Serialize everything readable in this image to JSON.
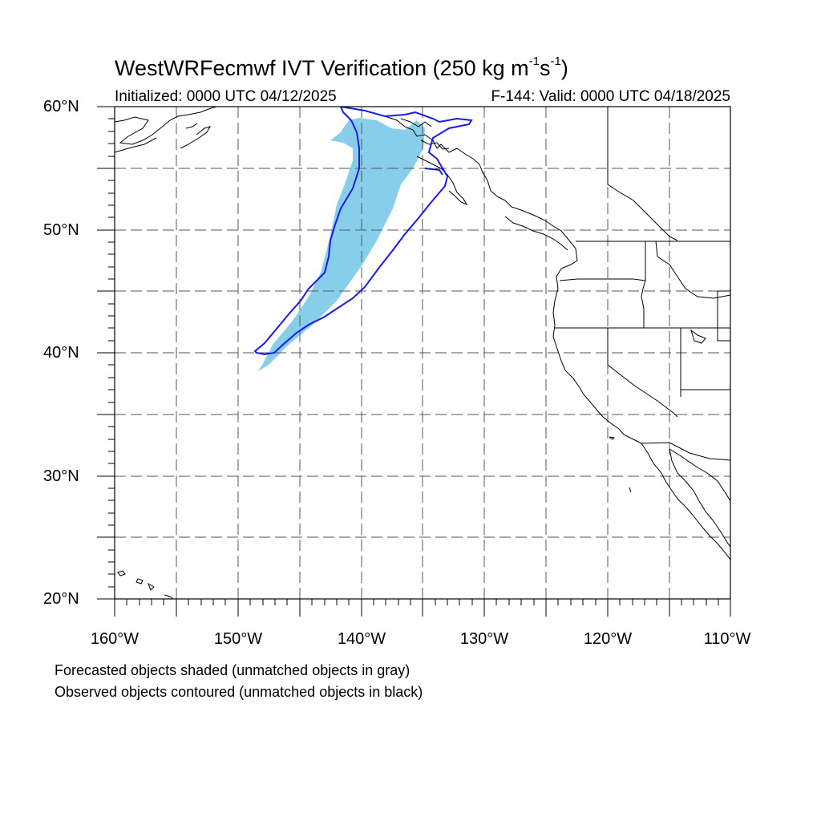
{
  "header": {
    "title_main": "WestWRFecmwf IVT Verification (250 kg m",
    "title_sup1": "-1",
    "title_mid": "s",
    "title_sup2": "-1",
    "title_end": ")",
    "init_text": "Initialized: 0000 UTC 04/12/2025",
    "valid_text": "F-144: Valid: 0000 UTC 04/18/2025"
  },
  "axes": {
    "lat_labels": [
      "60°N",
      "50°N",
      "40°N",
      "30°N",
      "20°N"
    ],
    "lon_labels": [
      "160°W",
      "150°W",
      "140°W",
      "130°W",
      "120°W",
      "110°W"
    ],
    "lat_range": [
      20,
      60
    ],
    "lon_range": [
      -160,
      -110
    ],
    "grid": "dashed, every 5 degrees"
  },
  "legend": {
    "line1": "Forecasted objects shaded (unmatched objects in gray)",
    "line2": "Observed objects contoured (unmatched objects in black)"
  },
  "colors": {
    "forecast_fill": "#87ceeb",
    "observed_contour": "#1a1ae6",
    "coastline": "#000000",
    "grid": "#555555"
  },
  "objects": {
    "forecast": {
      "label": "matched forecast IVT object",
      "matched": true
    },
    "observed": {
      "label": "matched observed IVT object",
      "matched": true
    }
  }
}
